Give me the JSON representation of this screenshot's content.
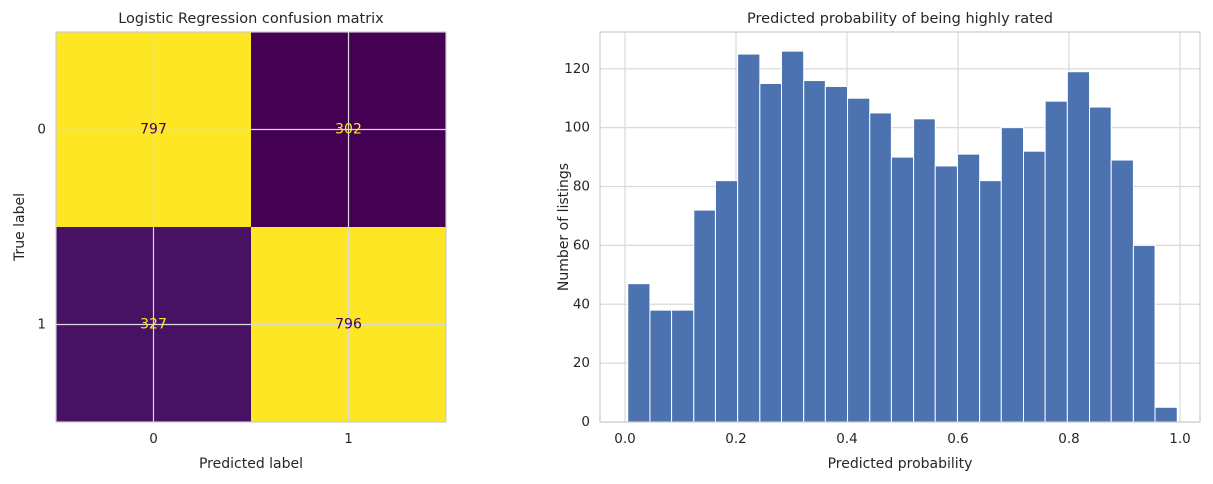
{
  "chart_data": [
    {
      "type": "heatmap",
      "title": "Logistic Regression confusion matrix",
      "x_label": "Predicted label",
      "y_label": "True label",
      "xticks": [
        0,
        1
      ],
      "yticks": [
        0,
        1
      ],
      "xlim": [
        -0.5,
        1.5
      ],
      "ylim": [
        1.5,
        -0.5
      ],
      "values": [
        [
          797,
          302
        ],
        [
          327,
          796
        ]
      ],
      "cell_colors": [
        [
          "#fde725",
          "#440154"
        ],
        [
          "#471164",
          "#fde725"
        ]
      ],
      "text_colors": [
        [
          "#440154",
          "#fde725"
        ],
        [
          "#fde725",
          "#440154"
        ]
      ],
      "grid": true
    },
    {
      "type": "histogram",
      "title": "Predicted probability of being highly rated",
      "x_label": "Predicted probability",
      "y_label": "Number of listings",
      "bins": [
        0.005,
        0.045,
        0.084,
        0.124,
        0.163,
        0.203,
        0.243,
        0.282,
        0.322,
        0.361,
        0.401,
        0.441,
        0.48,
        0.52,
        0.559,
        0.599,
        0.639,
        0.678,
        0.718,
        0.757,
        0.797,
        0.837,
        0.876,
        0.916,
        0.955,
        0.995
      ],
      "counts": [
        47,
        38,
        38,
        72,
        82,
        125,
        115,
        126,
        116,
        114,
        110,
        105,
        90,
        103,
        87,
        91,
        82,
        100,
        92,
        109,
        119,
        107,
        89,
        60,
        5
      ],
      "color": "#4c72b0",
      "xlim": [
        -0.045,
        1.036
      ],
      "ylim": [
        0,
        132.5
      ],
      "xticks": [
        {
          "value": 0,
          "label": "0.0"
        },
        0.2,
        0.4,
        0.6,
        0.8,
        {
          "value": 1,
          "label": "1.0"
        }
      ],
      "yticks": [
        0,
        20,
        40,
        60,
        80,
        100,
        120
      ],
      "grid": true
    }
  ]
}
